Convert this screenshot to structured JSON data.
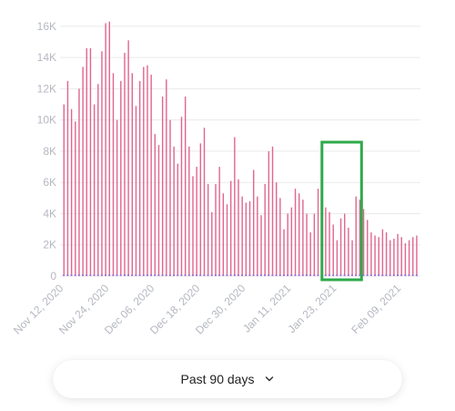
{
  "colors": {
    "cases": "#e0668f",
    "baseline": "#a678d0",
    "highlight": "#2eaa4a",
    "grid": "#e9eaee",
    "tick": "#b4b8c0"
  },
  "range_selector": {
    "label": "Past 90 days",
    "icon": "chevron-down-icon"
  },
  "highlight": {
    "x_start": "2021-01-20",
    "x_end": "2021-01-29"
  },
  "chart_data": {
    "type": "bar",
    "x_type": "date",
    "y_ticks": [
      "0",
      "2K",
      "4K",
      "6K",
      "8K",
      "10K",
      "12K",
      "14K",
      "16K"
    ],
    "y_tick_values": [
      0,
      2000,
      4000,
      6000,
      8000,
      10000,
      12000,
      14000,
      16000
    ],
    "x_ticks": [
      "Nov 12, 2020",
      "Nov 24, 2020",
      "Dec 06, 2020",
      "Dec 18, 2020",
      "Dec 30, 2020",
      "Jan 11, 2021",
      "Jan 23, 2021",
      "Feb 09, 2021"
    ],
    "x_tick_dates": [
      "2020-11-12",
      "2020-11-24",
      "2020-12-06",
      "2020-12-18",
      "2020-12-30",
      "2021-01-11",
      "2021-01-23",
      "2021-02-09"
    ],
    "ylim": [
      0,
      16400
    ],
    "xlim": [
      "2020-11-11",
      "2021-02-14"
    ],
    "grid": true,
    "series": [
      {
        "color": "#e0668f",
        "x": [
          "2020-11-12",
          "2020-11-13",
          "2020-11-14",
          "2020-11-15",
          "2020-11-16",
          "2020-11-17",
          "2020-11-18",
          "2020-11-19",
          "2020-11-20",
          "2020-11-21",
          "2020-11-22",
          "2020-11-23",
          "2020-11-24",
          "2020-11-25",
          "2020-11-26",
          "2020-11-27",
          "2020-11-28",
          "2020-11-29",
          "2020-11-30",
          "2020-12-01",
          "2020-12-02",
          "2020-12-03",
          "2020-12-04",
          "2020-12-05",
          "2020-12-06",
          "2020-12-07",
          "2020-12-08",
          "2020-12-09",
          "2020-12-10",
          "2020-12-11",
          "2020-12-12",
          "2020-12-13",
          "2020-12-14",
          "2020-12-15",
          "2020-12-16",
          "2020-12-17",
          "2020-12-18",
          "2020-12-19",
          "2020-12-20",
          "2020-12-21",
          "2020-12-22",
          "2020-12-23",
          "2020-12-24",
          "2020-12-25",
          "2020-12-26",
          "2020-12-27",
          "2020-12-28",
          "2020-12-29",
          "2020-12-30",
          "2020-12-31",
          "2021-01-01",
          "2021-01-02",
          "2021-01-03",
          "2021-01-04",
          "2021-01-05",
          "2021-01-06",
          "2021-01-07",
          "2021-01-08",
          "2021-01-09",
          "2021-01-10",
          "2021-01-11",
          "2021-01-12",
          "2021-01-13",
          "2021-01-14",
          "2021-01-15",
          "2021-01-16",
          "2021-01-17",
          "2021-01-18",
          "2021-01-19",
          "2021-01-20",
          "2021-01-21",
          "2021-01-22",
          "2021-01-23",
          "2021-01-24",
          "2021-01-25",
          "2021-01-26",
          "2021-01-27",
          "2021-01-28",
          "2021-01-29",
          "2021-01-30",
          "2021-01-31",
          "2021-02-01",
          "2021-02-02",
          "2021-02-03",
          "2021-02-04",
          "2021-02-05",
          "2021-02-06",
          "2021-02-07",
          "2021-02-08",
          "2021-02-09",
          "2021-02-10",
          "2021-02-11",
          "2021-02-12",
          "2021-02-13"
        ],
        "values": [
          11000,
          12500,
          10700,
          9900,
          12000,
          13400,
          14600,
          14600,
          11000,
          12300,
          14400,
          16200,
          16300,
          13000,
          10000,
          12500,
          14300,
          15100,
          13000,
          10900,
          12500,
          13400,
          13500,
          12900,
          9100,
          8400,
          11500,
          12600,
          10000,
          8300,
          7200,
          10200,
          11500,
          8300,
          6400,
          7000,
          8500,
          9500,
          5900,
          4100,
          5900,
          7000,
          5300,
          4600,
          6100,
          8900,
          6200,
          5100,
          4700,
          4800,
          6800,
          5100,
          3900,
          5900,
          8000,
          8300,
          6000,
          5000,
          3000,
          4000,
          4400,
          5600,
          5300,
          4900,
          4000,
          2800,
          4000,
          5600,
          5200,
          4400,
          4100,
          3300,
          2300,
          3700,
          4000,
          3100,
          2300,
          5100,
          4900,
          4300,
          3600,
          2800,
          2600,
          2500,
          3000,
          2800,
          2300,
          2400,
          2700,
          2500,
          2100,
          2300,
          2500,
          2600
        ]
      }
    ]
  }
}
